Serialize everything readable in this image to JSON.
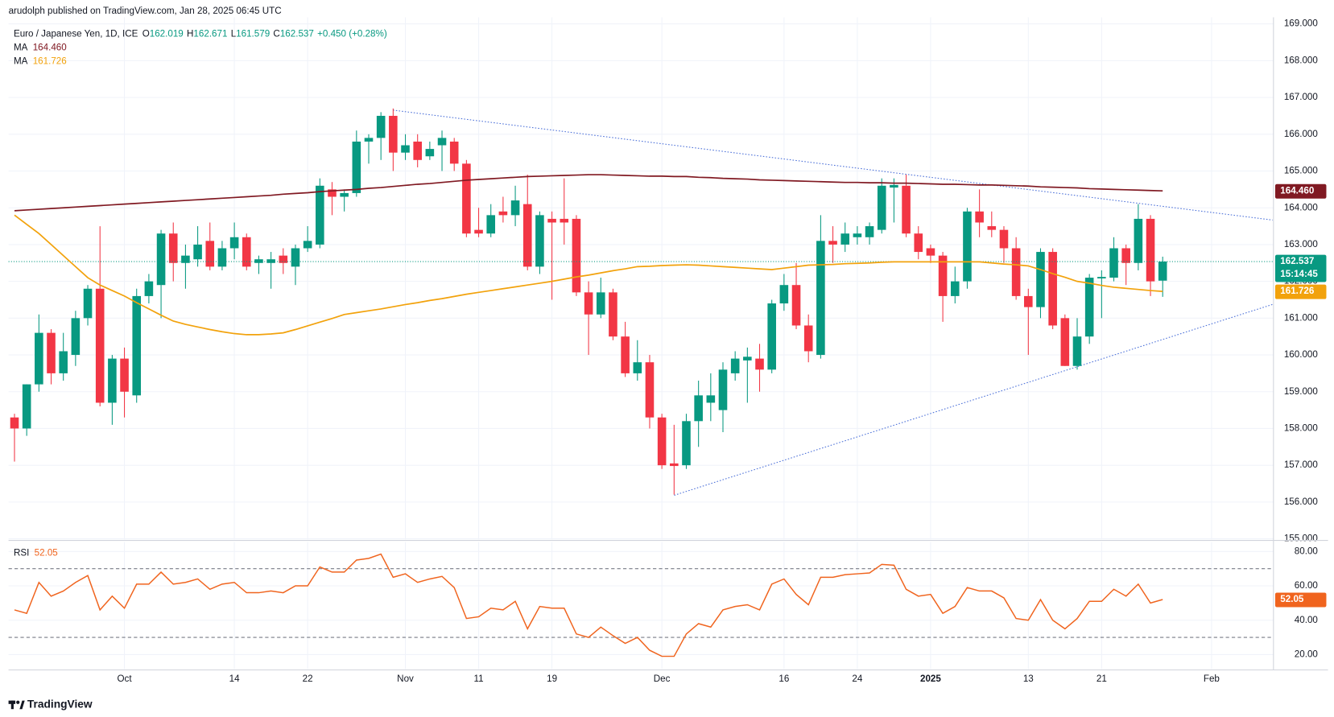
{
  "publisher": "arudolph published on TradingView.com, Jan 28, 2025 06:45 UTC",
  "brand": "TradingView",
  "chart_data": [
    {
      "type": "candlestick",
      "title": "Euro / Japanese Yen, 1D, ICE",
      "ohlc_legend": [
        [
          "O",
          "162.019"
        ],
        [
          "H",
          "162.671"
        ],
        [
          "L",
          "161.579"
        ],
        [
          "C",
          "162.537"
        ]
      ],
      "change": "+0.450 (+0.28%)",
      "last_price_label": "162.537",
      "countdown": "15:14:45",
      "up_color": "#089981",
      "down_color": "#f23645",
      "categories": [
        null,
        null,
        null,
        null,
        null,
        null,
        null,
        null,
        null,
        "Oct",
        null,
        null,
        null,
        null,
        null,
        null,
        null,
        null,
        "14",
        null,
        null,
        null,
        null,
        null,
        "22",
        null,
        null,
        null,
        null,
        null,
        null,
        null,
        "Nov",
        null,
        null,
        null,
        null,
        null,
        "11",
        null,
        null,
        null,
        null,
        null,
        "19",
        null,
        null,
        null,
        null,
        null,
        null,
        null,
        null,
        "Dec",
        null,
        null,
        null,
        null,
        null,
        null,
        null,
        null,
        null,
        "16",
        null,
        null,
        null,
        null,
        null,
        "24",
        null,
        null,
        null,
        null,
        null,
        "2025",
        null,
        null,
        null,
        null,
        null,
        null,
        null,
        "13",
        null,
        null,
        null,
        null,
        null,
        "21",
        null,
        null,
        null,
        null,
        null,
        null,
        null,
        null,
        "Feb",
        null,
        null,
        null,
        null
      ],
      "open": [
        158.3,
        158.0,
        159.2,
        160.6,
        159.5,
        160.0,
        161.0,
        161.8,
        158.7,
        159.9,
        158.9,
        161.6,
        161.9,
        163.3,
        162.5,
        162.6,
        163.1,
        162.4,
        162.9,
        163.2,
        162.5,
        162.5,
        162.7,
        162.4,
        162.9,
        163.0,
        164.5,
        164.3,
        164.4,
        165.8,
        165.9,
        166.5,
        165.5,
        165.8,
        165.4,
        165.7,
        165.8,
        165.2,
        163.4,
        163.3,
        163.9,
        163.8,
        164.1,
        162.4,
        163.7,
        163.7,
        163.7,
        161.7,
        161.1,
        161.7,
        160.5,
        159.5,
        159.8,
        158.3,
        157.05,
        157.0,
        158.2,
        158.7,
        158.5,
        159.5,
        159.85,
        159.9,
        159.6,
        161.4,
        161.9,
        160.8,
        160.0,
        163.1,
        163.0,
        163.2,
        163.2,
        163.4,
        164.55,
        164.6,
        163.3,
        162.9,
        162.7,
        161.6,
        162.0,
        163.9,
        163.5,
        163.4,
        162.9,
        161.6,
        161.3,
        162.8,
        161.0,
        159.7,
        160.5,
        162.08,
        162.1,
        162.9,
        162.5,
        163.7,
        162.019,
        null,
        null,
        null,
        null,
        null,
        null,
        null,
        null
      ],
      "high": [
        158.4,
        159.2,
        161.1,
        160.7,
        160.6,
        161.2,
        161.9,
        163.5,
        160.0,
        160.2,
        161.8,
        162.2,
        163.4,
        163.6,
        163.0,
        163.5,
        163.6,
        163.1,
        163.6,
        163.3,
        162.7,
        162.8,
        162.9,
        163.0,
        163.5,
        164.8,
        164.7,
        164.5,
        166.1,
        166.0,
        166.6,
        166.7,
        166.0,
        166.0,
        165.8,
        166.1,
        165.9,
        165.3,
        164.0,
        164.1,
        164.3,
        164.6,
        164.9,
        163.9,
        163.9,
        164.8,
        163.8,
        162.0,
        162.1,
        161.8,
        160.9,
        160.4,
        160.0,
        158.4,
        158.1,
        158.4,
        159.3,
        159.5,
        159.8,
        160.1,
        160.2,
        160.3,
        161.5,
        162.2,
        162.5,
        161.1,
        163.8,
        163.5,
        163.6,
        163.5,
        163.6,
        164.8,
        164.8,
        164.9,
        163.5,
        163.0,
        162.8,
        162.4,
        164.0,
        164.5,
        163.9,
        163.5,
        163.2,
        161.8,
        162.9,
        162.9,
        161.1,
        161.0,
        162.2,
        162.3,
        163.2,
        163.0,
        164.1,
        163.8,
        162.671,
        null,
        null,
        null,
        null,
        null,
        null,
        null,
        null
      ],
      "low": [
        157.1,
        157.8,
        159.0,
        159.2,
        159.3,
        159.7,
        160.8,
        158.6,
        158.1,
        158.3,
        158.7,
        161.4,
        161.0,
        162.0,
        161.8,
        162.4,
        162.3,
        162.3,
        162.6,
        162.3,
        162.2,
        161.8,
        162.2,
        161.9,
        162.8,
        162.9,
        163.8,
        163.9,
        164.3,
        165.2,
        165.3,
        165.0,
        165.3,
        165.1,
        165.3,
        165.0,
        165.0,
        163.2,
        163.2,
        163.2,
        163.6,
        163.5,
        162.3,
        162.2,
        161.5,
        163.0,
        161.6,
        160.0,
        161.0,
        160.4,
        159.4,
        159.3,
        158.0,
        156.9,
        156.2,
        156.9,
        157.5,
        158.2,
        157.9,
        159.3,
        158.7,
        159.0,
        159.5,
        161.2,
        160.7,
        159.8,
        159.9,
        162.5,
        162.8,
        163.0,
        163.0,
        163.3,
        163.6,
        163.2,
        162.6,
        162.5,
        160.9,
        161.4,
        161.8,
        163.2,
        163.2,
        162.5,
        161.5,
        160.0,
        161.0,
        160.7,
        159.7,
        159.6,
        160.3,
        161.0,
        162.0,
        161.9,
        162.3,
        161.6,
        161.579,
        null,
        null,
        null,
        null,
        null,
        null,
        null,
        null
      ],
      "close": [
        158.0,
        159.2,
        160.6,
        159.5,
        160.1,
        161.0,
        161.8,
        158.7,
        159.9,
        159.0,
        161.6,
        162.0,
        163.3,
        162.5,
        162.7,
        163.0,
        162.4,
        162.9,
        163.2,
        162.4,
        162.6,
        162.6,
        162.5,
        162.9,
        163.1,
        164.6,
        164.3,
        164.4,
        165.8,
        165.9,
        166.5,
        165.5,
        165.7,
        165.3,
        165.6,
        165.9,
        165.2,
        163.3,
        163.3,
        163.8,
        163.8,
        164.2,
        162.4,
        163.8,
        163.6,
        163.6,
        161.7,
        161.1,
        161.7,
        160.5,
        159.5,
        159.8,
        158.3,
        157.0,
        156.98,
        158.2,
        158.9,
        158.9,
        159.6,
        159.9,
        159.95,
        159.6,
        161.4,
        161.9,
        160.8,
        160.1,
        163.1,
        163.0,
        163.3,
        163.3,
        163.5,
        164.6,
        164.62,
        163.3,
        162.8,
        162.7,
        161.6,
        162.0,
        163.9,
        163.6,
        163.4,
        162.9,
        161.6,
        161.3,
        162.8,
        160.8,
        159.7,
        160.5,
        162.1,
        162.12,
        162.9,
        162.5,
        163.7,
        162.0,
        162.537,
        null,
        null,
        null,
        null,
        null,
        null,
        null,
        null
      ],
      "series": [
        {
          "name": "MA",
          "color": "#801922",
          "label": "164.460",
          "values": [
            163.92,
            163.94,
            163.96,
            163.98,
            164.0,
            164.02,
            164.04,
            164.06,
            164.08,
            164.1,
            164.12,
            164.14,
            164.16,
            164.18,
            164.2,
            164.22,
            164.24,
            164.26,
            164.28,
            164.3,
            164.32,
            164.34,
            164.37,
            164.39,
            164.41,
            164.44,
            164.46,
            164.48,
            164.5,
            164.53,
            164.55,
            164.58,
            164.61,
            164.64,
            164.66,
            164.69,
            164.72,
            164.75,
            164.77,
            164.79,
            164.81,
            164.83,
            164.85,
            164.86,
            164.87,
            164.88,
            164.89,
            164.9,
            164.9,
            164.89,
            164.88,
            164.87,
            164.86,
            164.86,
            164.85,
            164.85,
            164.83,
            164.82,
            164.8,
            164.79,
            164.78,
            164.76,
            164.75,
            164.74,
            164.73,
            164.72,
            164.71,
            164.7,
            164.69,
            164.69,
            164.68,
            164.68,
            164.67,
            164.67,
            164.66,
            164.65,
            164.64,
            164.64,
            164.63,
            164.62,
            164.62,
            164.61,
            164.6,
            164.59,
            164.57,
            164.56,
            164.55,
            164.54,
            164.52,
            164.51,
            164.5,
            164.49,
            164.48,
            164.47,
            164.46,
            null,
            null,
            null,
            null,
            null,
            null,
            null,
            null
          ]
        },
        {
          "name": "MA",
          "color": "#f2a20c",
          "label": "161.726",
          "values": [
            163.8,
            163.55,
            163.3,
            163.0,
            162.7,
            162.4,
            162.1,
            161.9,
            161.75,
            161.6,
            161.42,
            161.25,
            161.08,
            160.92,
            160.83,
            160.76,
            160.69,
            160.63,
            160.58,
            160.55,
            160.55,
            160.57,
            160.6,
            160.69,
            160.79,
            160.89,
            160.99,
            161.1,
            161.15,
            161.2,
            161.25,
            161.31,
            161.37,
            161.42,
            161.48,
            161.53,
            161.59,
            161.65,
            161.7,
            161.75,
            161.8,
            161.85,
            161.9,
            161.95,
            162.0,
            162.06,
            162.12,
            162.17,
            162.23,
            162.29,
            162.34,
            162.4,
            162.41,
            162.43,
            162.44,
            162.45,
            162.44,
            162.42,
            162.4,
            162.38,
            162.36,
            162.34,
            162.32,
            162.36,
            162.4,
            162.44,
            162.45,
            162.46,
            162.48,
            162.49,
            162.5,
            162.52,
            162.53,
            162.53,
            162.53,
            162.53,
            162.53,
            162.53,
            162.53,
            162.53,
            162.5,
            162.47,
            162.45,
            162.42,
            162.32,
            162.21,
            162.11,
            162.0,
            161.95,
            161.89,
            161.84,
            161.81,
            161.78,
            161.75,
            161.726,
            null,
            null,
            null,
            null,
            null,
            null,
            null,
            null
          ]
        }
      ],
      "ylim": [
        154.98,
        169.18
      ],
      "yticks": [
        {
          "value": 155,
          "label": "155.000"
        },
        {
          "value": 156,
          "label": "156.000"
        },
        {
          "value": 157,
          "label": "157.000"
        },
        {
          "value": 158,
          "label": "158.000"
        },
        {
          "value": 159,
          "label": "159.000"
        },
        {
          "value": 160,
          "label": "160.000"
        },
        {
          "value": 161,
          "label": "161.000"
        },
        {
          "value": 162,
          "label": "162.000"
        },
        {
          "value": 163,
          "label": "163.000"
        },
        {
          "value": 164,
          "label": "164.000"
        },
        {
          "value": 165,
          "label": "165.000"
        },
        {
          "value": 166,
          "label": "166.000"
        },
        {
          "value": 167,
          "label": "167.000"
        },
        {
          "value": 168,
          "label": "168.000"
        },
        {
          "value": 169,
          "label": "169.000"
        }
      ],
      "grid": true
    },
    {
      "type": "line",
      "series": [
        {
          "name": "RSI",
          "color": "#f0641e",
          "label": "52.05",
          "values": [
            46,
            44,
            62,
            54,
            57,
            62,
            66,
            46,
            54,
            47,
            61,
            61,
            68,
            61,
            62,
            64,
            58,
            61,
            62,
            56,
            56,
            57,
            56,
            60,
            60,
            71,
            68,
            68,
            75,
            76,
            78.5,
            65,
            67,
            62,
            64,
            65.5,
            59,
            41,
            42,
            47,
            46,
            51,
            35,
            48,
            47,
            47,
            32,
            30,
            36,
            31,
            26.5,
            30,
            22.5,
            19,
            19,
            32,
            38,
            36,
            46,
            48,
            49,
            46,
            61,
            64,
            55,
            49,
            65,
            65,
            66.5,
            67,
            67.5,
            72.5,
            72,
            58,
            54,
            55,
            44,
            48,
            59,
            57,
            57,
            53,
            41,
            40,
            52,
            40,
            35,
            41,
            51,
            51,
            58,
            54,
            61,
            50,
            52.05,
            null,
            null,
            null,
            null,
            null,
            null,
            null,
            null
          ]
        }
      ],
      "levels": [
        70,
        30
      ],
      "ylim": [
        11.57,
        85.45
      ],
      "yticks": [
        {
          "value": 20,
          "label": "20.00"
        },
        {
          "value": 40,
          "label": "40.00"
        },
        {
          "value": 60,
          "label": "60.00"
        },
        {
          "value": 80,
          "label": "80.00"
        }
      ],
      "grid": true
    }
  ]
}
